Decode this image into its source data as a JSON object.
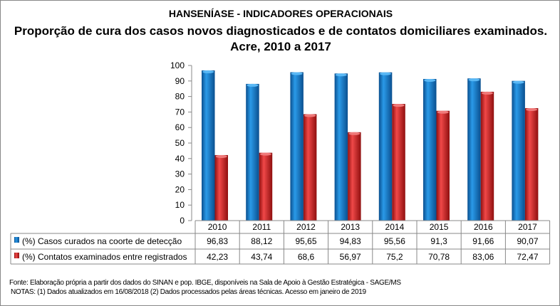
{
  "chart_data": {
    "type": "bar",
    "supertitle": "HANSENÍASE - INDICADORES OPERACIONAIS",
    "title": "Proporção de cura dos casos novos diagnosticados e de contatos domiciliares examinados. Acre, 2010 a 2017",
    "categories": [
      "2010",
      "2011",
      "2012",
      "2013",
      "2014",
      "2015",
      "2016",
      "2017"
    ],
    "series": [
      {
        "name": "(%) Casos curados na coorte de detecção",
        "color": "#0070C0",
        "values": [
          96.83,
          88.12,
          95.65,
          94.83,
          95.56,
          91.3,
          91.66,
          90.07
        ],
        "labels": [
          "96,83",
          "88,12",
          "95,65",
          "94,83",
          "95,56",
          "91,3",
          "91,66",
          "90,07"
        ]
      },
      {
        "name": "(%) Contatos examinados entre registrados",
        "color": "#E02020",
        "values": [
          42.23,
          43.74,
          68.6,
          56.97,
          75.2,
          70.78,
          83.06,
          72.47
        ],
        "labels": [
          "42,23",
          "43,74",
          "68,6",
          "56,97",
          "75,2",
          "70,78",
          "83,06",
          "72,47"
        ]
      }
    ],
    "ylim": [
      0,
      100
    ],
    "yticks": [
      0,
      10,
      20,
      30,
      40,
      50,
      60,
      70,
      80,
      90,
      100
    ],
    "grid": false,
    "legend": "data-table"
  },
  "footer": {
    "source": "Fonte:  Elaboração própria a partir dos dados do  SINAN  e  pop. IBGE, disponíveis na Sala de Apoio à Gestão Estratégica - SAGE/MS",
    "notes": "NOTAS: (1) Dados atualizados em 16/08/2018 (2) Dados processados pelas áreas técnicas. Acesso em janeiro de 2019"
  }
}
